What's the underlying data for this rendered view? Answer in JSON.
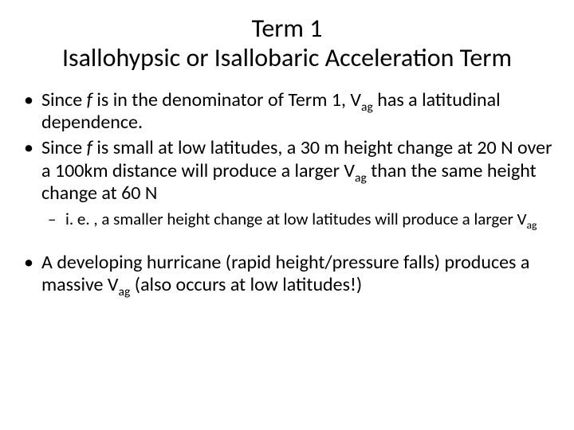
{
  "title": {
    "line1": "Term 1",
    "line2": "Isallohypsic or Isallobaric Acceleration Term",
    "fontsize": 32,
    "color": "#000000",
    "align": "center"
  },
  "bullets": [
    {
      "pre": "Since ",
      "italic": "f",
      "mid": " is in the denominator of Term 1, V",
      "sub": "ag",
      "post": " has a latitudinal dependence."
    },
    {
      "pre": "Since ",
      "italic": "f",
      "mid": " is small at low latitudes, a 30 m height change at 20 N over a 100km distance will produce a larger V",
      "sub": "ag",
      "post": " than the same height change at 60 N"
    }
  ],
  "sub_bullet": {
    "pre": "i. e. , a smaller height change at low latitudes will produce a larger V",
    "sub": "ag"
  },
  "bullet3": {
    "pre": "A developing hurricane (rapid height/pressure falls) produces a massive V",
    "sub": "ag",
    "post": " (also occurs at low latitudes!)"
  },
  "style": {
    "body_fontsize": 24,
    "sub_bullet_fontsize": 21,
    "background": "#ffffff",
    "text_color": "#000000",
    "font_family": "Calibri"
  }
}
